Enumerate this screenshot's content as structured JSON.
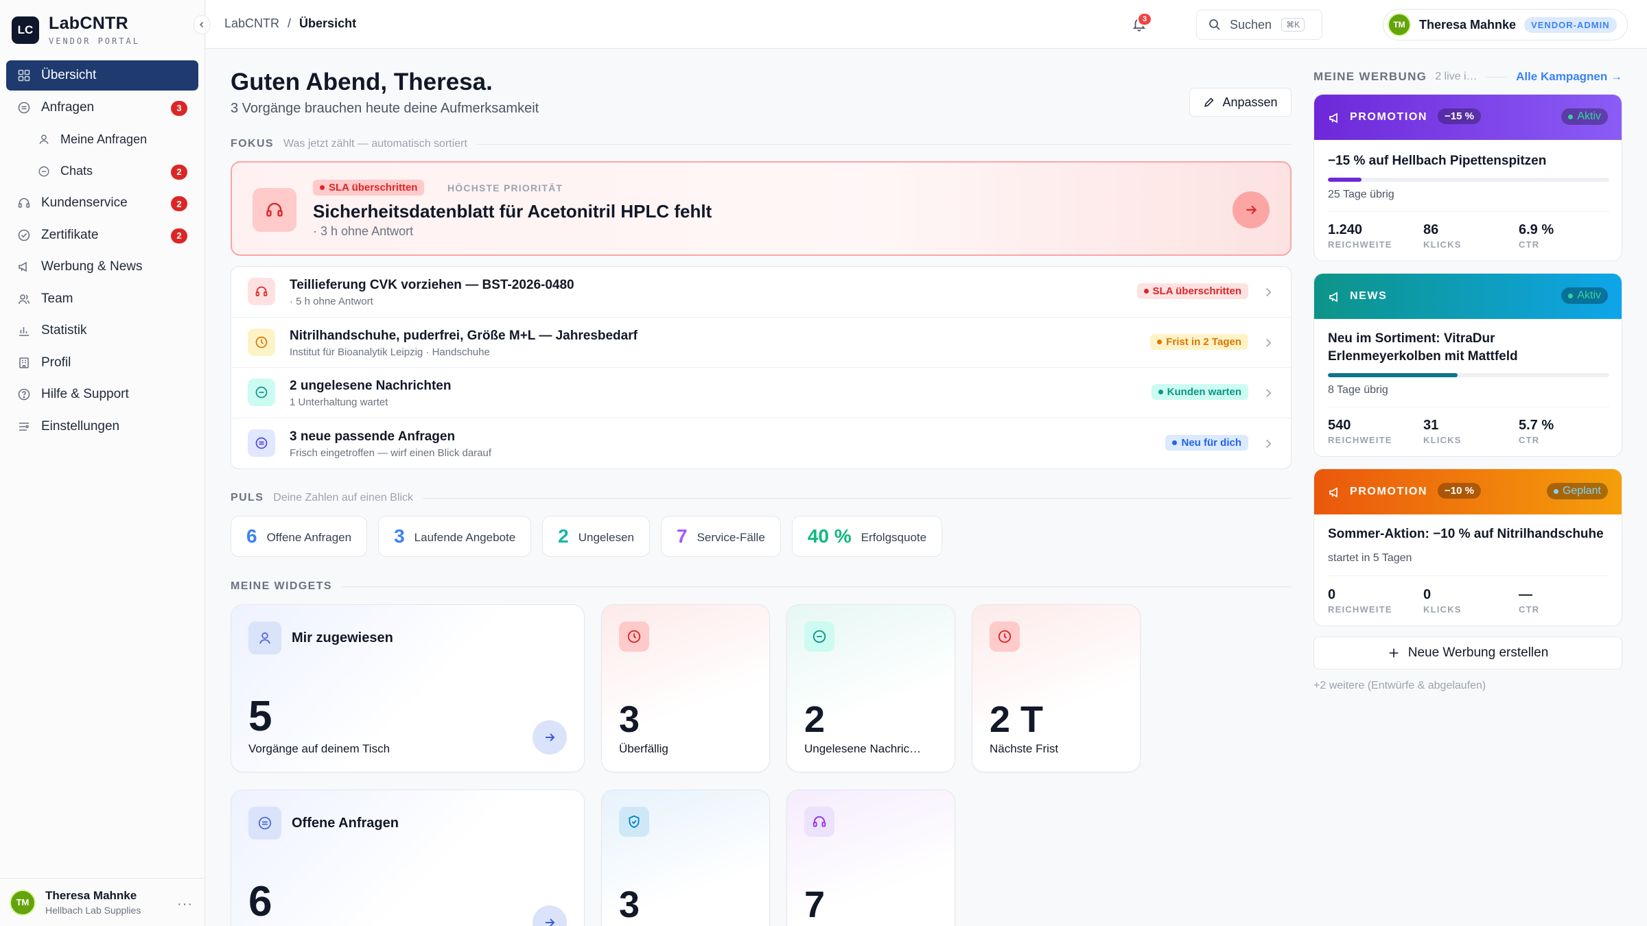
{
  "brand": {
    "logo": "LC",
    "name": "LabCNTR",
    "subtitle": "VENDOR PORTAL"
  },
  "sidebar": {
    "items": [
      {
        "label": "Übersicht",
        "icon": "grid-icon",
        "active": true
      },
      {
        "label": "Anfragen",
        "icon": "inbox-icon",
        "count": "3"
      },
      {
        "label": "Meine Anfragen",
        "icon": "user-icon",
        "sub": true
      },
      {
        "label": "Chats",
        "icon": "chat-icon",
        "sub": true,
        "count": "2"
      },
      {
        "label": "Kundenservice",
        "icon": "headset-icon",
        "count": "2"
      },
      {
        "label": "Zertifikate",
        "icon": "check-circle-icon",
        "count": "2"
      },
      {
        "label": "Werbung & News",
        "icon": "megaphone-icon"
      },
      {
        "label": "Team",
        "icon": "users-icon"
      },
      {
        "label": "Statistik",
        "icon": "bar-chart-icon"
      },
      {
        "label": "Profil",
        "icon": "building-icon"
      },
      {
        "label": "Hilfe & Support",
        "icon": "help-icon"
      },
      {
        "label": "Einstellungen",
        "icon": "sliders-icon"
      }
    ],
    "footer": {
      "initials": "TM",
      "name": "Theresa Mahnke",
      "company": "Hellbach Lab Supplies",
      "more": "···"
    }
  },
  "topbar": {
    "breadcrumb_root": "LabCNTR",
    "breadcrumb_sep": "/",
    "breadcrumb_current": "Übersicht",
    "search_label": "Suchen",
    "search_kbd": "⌘K",
    "notification_count": "3",
    "user_initials": "TM",
    "user_name": "Theresa Mahnke",
    "user_role": "VENDOR-ADMIN"
  },
  "main": {
    "greeting": "Guten Abend, Theresa.",
    "subtitle": "3 Vorgänge brauchen heute deine Aufmerksamkeit",
    "adjust_button": "Anpassen",
    "focus_heading": "FOKUS",
    "focus_note": "Was jetzt zählt — automatisch sortiert",
    "focus": {
      "status": "SLA überschritten",
      "priority": "HÖCHSTE PRIORITÄT",
      "title": "Sicherheitsdatenblatt für Acetonitril HPLC fehlt",
      "sub": "· 3 h ohne Antwort"
    },
    "tasks": [
      {
        "title": "Teillieferung CVK vorziehen — BST-2026-0480",
        "sub": "· 5 h ohne Antwort",
        "status": "SLA überschritten",
        "icon": "headset-icon",
        "tone": "red"
      },
      {
        "title": "Nitrilhandschuhe, puderfrei, Größe M+L — Jahresbedarf",
        "sub": "Institut für Bioanalytik Leipzig · Handschuhe",
        "status": "Frist in 2 Tagen",
        "icon": "clock-icon",
        "tone": "amber"
      },
      {
        "title": "2 ungelesene Nachrichten",
        "sub": "1 Unterhaltung wartet",
        "status": "Kunden warten",
        "icon": "chat-icon",
        "tone": "teal"
      },
      {
        "title": "3 neue passende Anfragen",
        "sub": "Frisch eingetroffen — wirf einen Blick darauf",
        "status": "Neu für dich",
        "icon": "inbox-icon",
        "tone": "blue"
      }
    ],
    "pulse_heading": "PULS",
    "pulse_note": "Deine Zahlen auf einen Blick",
    "pulse": [
      {
        "value": "6",
        "label": "Offene Anfragen",
        "color": "#3b82f6"
      },
      {
        "value": "3",
        "label": "Laufende Angebote",
        "color": "#3b82f6"
      },
      {
        "value": "2",
        "label": "Ungelesen",
        "color": "#14b8a6"
      },
      {
        "value": "7",
        "label": "Service-Fälle",
        "color": "#a855f7"
      },
      {
        "value": "40 %",
        "label": "Erfolgsquote",
        "color": "#10b981"
      }
    ],
    "widgets_heading": "MEINE WIDGETS",
    "widgets": [
      {
        "title": "Mir zugewiesen",
        "value": "5",
        "label": "Vorgänge auf deinem Tisch",
        "icon": "user-icon"
      },
      {
        "value": "3",
        "label": "Überfällig",
        "icon": "clock-icon"
      },
      {
        "value": "2",
        "label": "Ungelesene Nachric…",
        "icon": "chat-icon"
      },
      {
        "value": "2 T",
        "label": "Nächste Frist",
        "icon": "clock-icon"
      },
      {
        "title": "Offene Anfragen",
        "value": "6",
        "icon": "inbox-icon"
      },
      {
        "value": "3",
        "icon": "shield-icon"
      },
      {
        "value": "7",
        "icon": "headset-icon"
      }
    ]
  },
  "ads": {
    "heading": "MEINE WERBUNG",
    "live_note": "2 live i…",
    "all_link": "Alle Kampagnen →",
    "cards": [
      {
        "type": "PROMOTION",
        "discount": "−15 %",
        "status": "Aktiv",
        "title": "−15 % auf Hellbach Pipettenspitzen",
        "days": "25 Tage übrig",
        "progress": 0.12,
        "reach": "1.240",
        "clicks": "86",
        "ctr": "6.9 %",
        "color": "#7c3aed"
      },
      {
        "type": "NEWS",
        "status": "Aktiv",
        "title": "Neu im Sortiment: VitraDur Erlenmeyerkolben mit Mattfeld",
        "days": "8 Tage übrig",
        "progress": 0.46,
        "reach": "540",
        "clicks": "31",
        "ctr": "5.7 %",
        "color": "#0891b2"
      },
      {
        "type": "PROMOTION",
        "discount": "−10 %",
        "status": "Geplant",
        "title": "Sommer-Aktion: −10 % auf Nitrilhandschuhe",
        "days": "startet in 5 Tagen",
        "reach": "0",
        "clicks": "0",
        "ctr": "—",
        "color": "#ea580c"
      }
    ],
    "stat_labels": {
      "reach": "REICHWEITE",
      "clicks": "KLICKS",
      "ctr": "CTR"
    },
    "new_button": "Neue Werbung erstellen",
    "more_note": "+2 weitere (Entwürfe & abgelaufen)"
  }
}
